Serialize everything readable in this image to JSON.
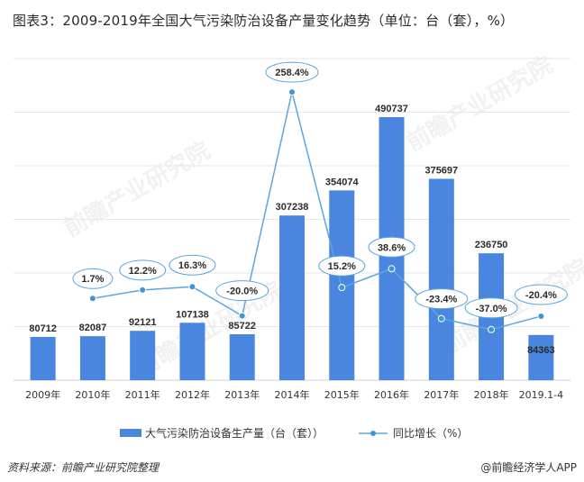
{
  "title": "图表3：2009-2019年全国大气污染防治设备产量变化趋势（单位：台（套），%）",
  "footer": {
    "source": "资料来源：前瞻产业研究院整理",
    "brand": "@前瞻经济学人APP"
  },
  "watermark": "前瞻产业研究院",
  "colors": {
    "bar": "#4A86E0",
    "line": "#5AA7DB",
    "marker": "#3F95D4",
    "bubble_border": "#5AA7DB",
    "grid": "#E6E6E6"
  },
  "chart_data": {
    "type": "bar",
    "categories": [
      "2009年",
      "2010年",
      "2011年",
      "2012年",
      "2013年",
      "2014年",
      "2015年",
      "2016年",
      "2017年",
      "2018年",
      "2019.1-4"
    ],
    "series": [
      {
        "name": "大气污染防治设备生产量（台（套））",
        "type": "bar",
        "axis": "left",
        "values": [
          80712,
          82087,
          92121,
          107138,
          85722,
          307238,
          354074,
          490737,
          375697,
          236750,
          84363
        ],
        "labels": [
          "80712",
          "82087",
          "92121",
          "107138",
          "85722",
          "307238",
          "354074",
          "490737",
          "375697",
          "236750",
          "84363"
        ]
      },
      {
        "name": "同比增长（%）",
        "type": "line",
        "axis": "right",
        "values": [
          null,
          1.7,
          12.2,
          16.3,
          -20.0,
          258.4,
          15.2,
          38.6,
          -23.4,
          -37.0,
          -20.4
        ],
        "labels": [
          "",
          "1.7%",
          "12.2%",
          "16.3%",
          "-20.0%",
          "258.4%",
          "15.2%",
          "38.6%",
          "-23.4%",
          "-37.0%",
          "-20.4%"
        ]
      }
    ],
    "ylim_left": [
      0,
      600000
    ],
    "ylim_right": [
      -100,
      300
    ],
    "grid": true,
    "legend": "bottom"
  }
}
